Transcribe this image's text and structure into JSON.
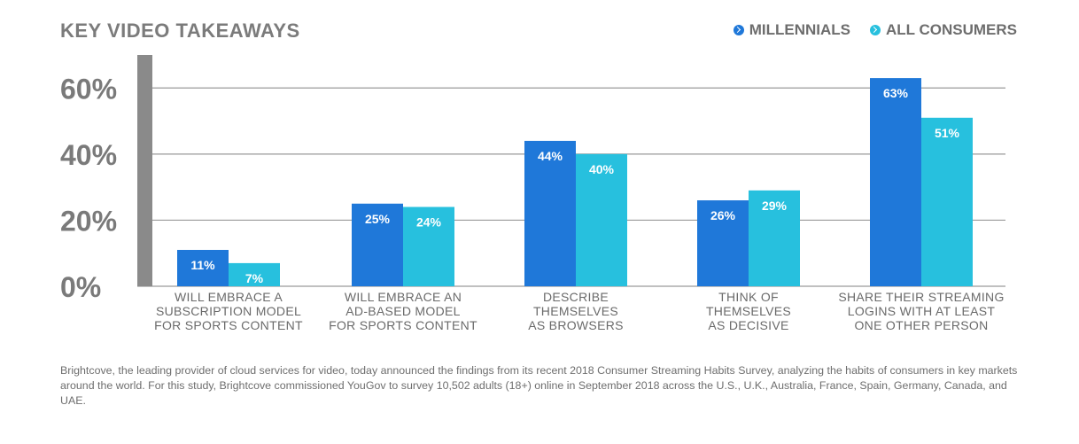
{
  "header": {
    "title": "KEY VIDEO TAKEAWAYS"
  },
  "legend": [
    {
      "label": "MILLENNIALS",
      "color": "#1f78d9"
    },
    {
      "label": "ALL CONSUMERS",
      "color": "#27c0de"
    }
  ],
  "chart_data": {
    "type": "bar",
    "ylim": [
      0,
      70
    ],
    "yticks": [
      "0%",
      "20%",
      "40%",
      "60%"
    ],
    "ytick_values": [
      0,
      20,
      40,
      60
    ],
    "grid": true,
    "categories": [
      [
        "WILL EMBRACE A",
        "SUBSCRIPTION MODEL",
        "FOR SPORTS CONTENT"
      ],
      [
        "WILL EMBRACE AN",
        "AD-BASED MODEL",
        "FOR SPORTS CONTENT"
      ],
      [
        "DESCRIBE",
        "THEMSELVES",
        "AS BROWSERS"
      ],
      [
        "THINK OF",
        "THEMSELVES",
        "AS DECISIVE"
      ],
      [
        "SHARE THEIR STREAMING",
        "LOGINS WITH AT LEAST",
        "ONE OTHER PERSON"
      ]
    ],
    "series": [
      {
        "name": "MILLENNIALS",
        "color": "#1f78d9",
        "values": [
          11,
          25,
          44,
          26,
          63
        ],
        "labels": [
          "11%",
          "25%",
          "44%",
          "26%",
          "63%"
        ]
      },
      {
        "name": "ALL CONSUMERS",
        "color": "#27c0de",
        "values": [
          7,
          24,
          40,
          29,
          51
        ],
        "labels": [
          "7%",
          "24%",
          "40%",
          "29%",
          "51%"
        ]
      }
    ]
  },
  "footnote": "Brightcove, the leading provider of cloud services for video, today announced the findings from its recent 2018 Consumer Streaming Habits Survey, analyzing the habits of consumers in key markets around the world. For this study, Brightcove commissioned YouGov to survey 10,502 adults (18+) online in September 2018 across the U.S., U.K., Australia, France, Spain, Germany, Canada, and UAE."
}
